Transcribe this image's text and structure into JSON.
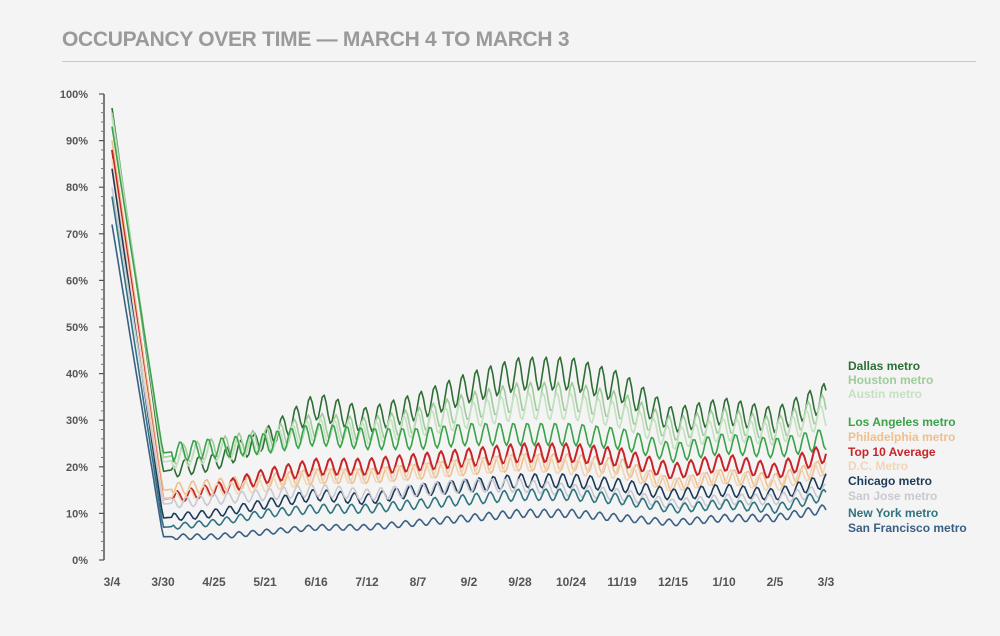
{
  "title": "OCCUPANCY OVER TIME — MARCH 4 TO MARCH 3",
  "chart_data": {
    "type": "line",
    "title": "OCCUPANCY OVER TIME — MARCH 4 TO MARCH 3",
    "xlabel": "",
    "ylabel": "",
    "ylim": [
      0,
      100
    ],
    "yticks": [
      "0%",
      "10%",
      "20%",
      "30%",
      "40%",
      "50%",
      "60%",
      "70%",
      "80%",
      "90%",
      "100%"
    ],
    "x": [
      "3/4",
      "3/30",
      "4/25",
      "5/21",
      "6/16",
      "7/12",
      "8/7",
      "9/2",
      "9/28",
      "10/24",
      "11/19",
      "12/15",
      "1/10",
      "2/5",
      "3/3"
    ],
    "grid": false,
    "legend_position": "right",
    "series": [
      {
        "name": "Dallas metro",
        "color": "#2e6e35",
        "values": [
          97,
          19,
          21,
          26,
          33,
          30,
          33,
          37,
          40,
          40,
          37,
          30,
          32,
          30,
          35
        ]
      },
      {
        "name": "Houston metro",
        "color": "#9fcc9c",
        "values": [
          96,
          22,
          24,
          26,
          29,
          28,
          30,
          33,
          35,
          35,
          33,
          28,
          30,
          28,
          33
        ]
      },
      {
        "name": "Austin metro",
        "color": "#c4e1c0",
        "values": [
          95,
          21,
          23,
          25,
          28,
          27,
          29,
          31,
          33,
          33,
          31,
          26,
          28,
          27,
          31
        ]
      },
      {
        "name": "Los Angeles metro",
        "color": "#3aa34a",
        "values": [
          93,
          23,
          24,
          25,
          27,
          26,
          26,
          27,
          27,
          27,
          26,
          23,
          25,
          24,
          26
        ]
      },
      {
        "name": "Philadelphia metro",
        "color": "#eebf8f",
        "values": [
          90,
          15,
          16,
          17,
          18,
          18,
          19,
          20,
          21,
          21,
          20,
          16,
          18,
          17,
          20
        ]
      },
      {
        "name": "Top 10 Average",
        "color": "#c8252b",
        "values": [
          88,
          13,
          15,
          18,
          20,
          20,
          21,
          22,
          23,
          23,
          22,
          19,
          21,
          19,
          23
        ]
      },
      {
        "name": "D.C. Metro",
        "color": "#f0d6b8",
        "values": [
          86,
          13,
          15,
          16,
          18,
          18,
          19,
          20,
          21,
          20,
          19,
          16,
          18,
          16,
          20
        ]
      },
      {
        "name": "Chicago metro",
        "color": "#1c3b5a",
        "values": [
          84,
          9,
          10,
          12,
          14,
          13,
          15,
          16,
          17,
          17,
          16,
          14,
          15,
          14,
          17
        ]
      },
      {
        "name": "San Jose metro",
        "color": "#c9c9d2",
        "values": [
          80,
          12,
          13,
          14,
          15,
          14,
          15,
          16,
          16,
          15,
          14,
          12,
          13,
          13,
          15
        ]
      },
      {
        "name": "New York metro",
        "color": "#2f7480",
        "values": [
          78,
          7,
          8,
          10,
          11,
          11,
          12,
          13,
          14,
          14,
          13,
          11,
          12,
          11,
          14
        ]
      },
      {
        "name": "San Francisco metro",
        "color": "#3a5f86",
        "values": [
          72,
          5,
          5,
          6,
          7,
          7,
          8,
          9,
          10,
          10,
          9,
          8,
          9,
          9,
          11
        ]
      }
    ]
  }
}
